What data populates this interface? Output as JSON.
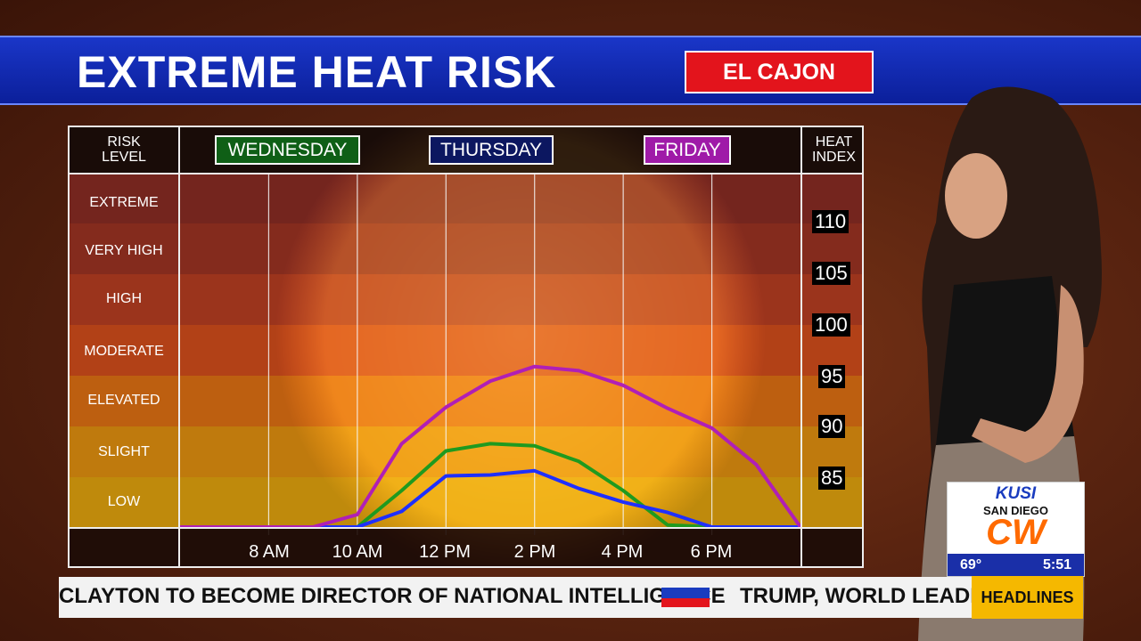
{
  "header": {
    "title": "EXTREME HEAT RISK",
    "location": "EL CAJON"
  },
  "colors": {
    "wednesday": "#1f9a1f",
    "thursday": "#1f2fff",
    "friday": "#b01fb6"
  },
  "chart_data": {
    "type": "line",
    "left_header": [
      "RISK",
      "LEVEL"
    ],
    "right_header": [
      "HEAT",
      "INDEX"
    ],
    "days": [
      "WEDNESDAY",
      "THURSDAY",
      "FRIDAY"
    ],
    "risk_levels": [
      "EXTREME",
      "VERY HIGH",
      "HIGH",
      "MODERATE",
      "ELEVATED",
      "SLIGHT",
      "LOW"
    ],
    "x_tick_labels": [
      "8 AM",
      "10 AM",
      "12 PM",
      "2 PM",
      "4 PM",
      "6 PM"
    ],
    "heat_index_ticks": [
      "110",
      "105",
      "100",
      "95",
      "90",
      "85"
    ],
    "x": [
      6,
      7,
      8,
      9,
      10,
      11,
      12,
      13,
      14,
      15,
      16,
      17,
      18,
      19,
      20
    ],
    "ylim": [
      80,
      114
    ],
    "series": [
      {
        "name": "WEDNESDAY",
        "values": [
          80,
          80,
          80,
          80,
          80,
          83.5,
          87.3,
          88,
          87.8,
          86.3,
          83.5,
          80.2,
          80,
          80,
          80
        ]
      },
      {
        "name": "THURSDAY",
        "values": [
          80,
          80,
          80,
          80,
          80,
          81.5,
          84.9,
          85,
          85.4,
          83.7,
          82.4,
          81.4,
          80,
          80,
          80
        ]
      },
      {
        "name": "FRIDAY",
        "values": [
          80,
          80,
          80,
          80,
          81.2,
          88,
          91.5,
          94,
          95.4,
          95,
          93.6,
          91.4,
          89.5,
          86,
          80
        ]
      }
    ]
  },
  "ticker": {
    "left_text": "CLAYTON TO BECOME DIRECTOR OF NATIONAL INTELLIGENCE",
    "right_text": "TRUMP, WORLD LEADERS"
  },
  "bug": {
    "station": "KUSI",
    "city": "SAN DIEGO",
    "network": "CW",
    "temp": "69°",
    "time": "5:51"
  },
  "headlines_label": "HEADLINES"
}
